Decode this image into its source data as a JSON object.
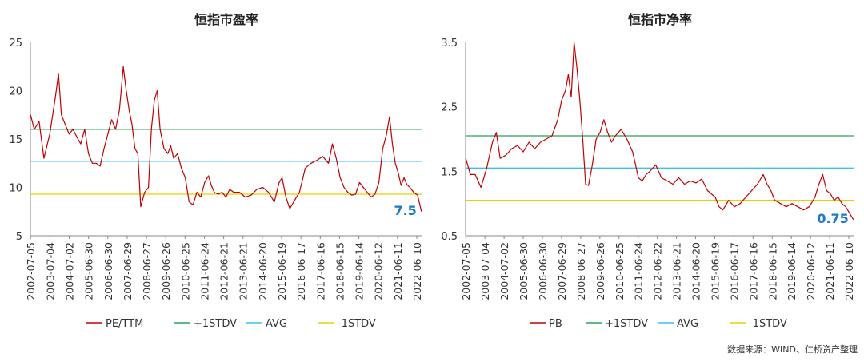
{
  "source_note": "数据来源：WIND、仁桥资产整理",
  "chart_data": [
    {
      "type": "line",
      "title": "恒指市盈率",
      "ylim": [
        5,
        25
      ],
      "yticks": [
        5,
        10,
        15,
        20,
        25
      ],
      "x_range": [
        2002.5,
        2022.75
      ],
      "xtick_labels": [
        "2002-07-05",
        "2003-07-04",
        "2004-07-02",
        "2005-06-30",
        "2006-06-30",
        "2007-06-29",
        "2008-06-27",
        "2009-06-26",
        "2010-06-25",
        "2011-06-24",
        "2012-06-21",
        "2013-06-21",
        "2014-06-20",
        "2015-06-19",
        "2016-06-17",
        "2017-06-16",
        "2018-06-15",
        "2019-06-14",
        "2020-06-12",
        "2021-06-11",
        "2022-06-10"
      ],
      "series": [
        {
          "name": "PE/TTM",
          "color": "#c00000",
          "x": [
            2002.51,
            2002.7,
            2002.95,
            2003.2,
            2003.5,
            2003.8,
            2003.95,
            2004.1,
            2004.3,
            2004.5,
            2004.7,
            2004.9,
            2005.1,
            2005.3,
            2005.5,
            2005.7,
            2005.9,
            2006.1,
            2006.3,
            2006.5,
            2006.7,
            2006.9,
            2007.1,
            2007.3,
            2007.45,
            2007.6,
            2007.75,
            2007.9,
            2008.05,
            2008.2,
            2008.4,
            2008.6,
            2008.75,
            2008.9,
            2009.05,
            2009.2,
            2009.4,
            2009.6,
            2009.75,
            2009.9,
            2010.1,
            2010.3,
            2010.5,
            2010.7,
            2010.9,
            2011.1,
            2011.3,
            2011.5,
            2011.7,
            2011.85,
            2012.0,
            2012.2,
            2012.4,
            2012.6,
            2012.8,
            2013.0,
            2013.3,
            2013.6,
            2013.9,
            2014.2,
            2014.5,
            2014.8,
            2015.1,
            2015.35,
            2015.5,
            2015.7,
            2015.9,
            2016.1,
            2016.4,
            2016.7,
            2017.0,
            2017.3,
            2017.6,
            2017.9,
            2018.1,
            2018.3,
            2018.5,
            2018.7,
            2018.9,
            2019.1,
            2019.3,
            2019.5,
            2019.7,
            2019.9,
            2020.1,
            2020.3,
            2020.5,
            2020.7,
            2020.9,
            2021.05,
            2021.2,
            2021.35,
            2021.5,
            2021.65,
            2021.8,
            2021.95,
            2022.1,
            2022.3,
            2022.5,
            2022.7
          ],
          "values": [
            17.5,
            16.0,
            16.8,
            13.0,
            15.5,
            19.5,
            21.8,
            17.5,
            16.5,
            15.5,
            16.0,
            15.2,
            14.5,
            16.0,
            13.5,
            12.5,
            12.5,
            12.2,
            14.0,
            15.5,
            17.0,
            16.0,
            18.0,
            22.5,
            20.0,
            18.0,
            16.5,
            14.0,
            13.5,
            8.0,
            9.5,
            10.0,
            16.0,
            19.0,
            20.0,
            16.0,
            14.0,
            13.5,
            14.3,
            13.0,
            13.5,
            12.0,
            11.0,
            8.5,
            8.2,
            9.5,
            9.0,
            10.5,
            11.2,
            10.2,
            9.5,
            9.3,
            9.5,
            9.0,
            9.8,
            9.5,
            9.5,
            9.0,
            9.2,
            9.8,
            10.0,
            9.5,
            8.5,
            10.5,
            11.0,
            9.0,
            7.8,
            8.5,
            9.5,
            12.0,
            12.5,
            12.8,
            13.2,
            12.5,
            14.5,
            13.0,
            11.0,
            10.0,
            9.5,
            9.2,
            9.3,
            10.5,
            10.0,
            9.5,
            9.0,
            9.3,
            10.5,
            14.0,
            15.5,
            17.3,
            14.5,
            12.5,
            11.5,
            10.2,
            11.0,
            10.3,
            10.0,
            9.5,
            9.2,
            7.5
          ]
        },
        {
          "name": "+1STDV",
          "color": "#2ca05a",
          "values": [
            16.0,
            16.0
          ]
        },
        {
          "name": "AVG",
          "color": "#3cc2f0",
          "values": [
            12.7,
            12.7
          ]
        },
        {
          "name": "-1STDV",
          "color": "#e8d000",
          "values": [
            9.3,
            9.3
          ]
        }
      ],
      "annotation": {
        "text": "7.5",
        "color": "#1f78c8"
      }
    },
    {
      "type": "line",
      "title": "恒指市净率",
      "ylim": [
        0.5,
        3.5
      ],
      "yticks": [
        "0.5",
        "1.5",
        "2.5",
        "3.5"
      ],
      "x_range": [
        2002.5,
        2022.75
      ],
      "xtick_labels": [
        "2002-07-05",
        "2003-07-04",
        "2004-07-02",
        "2005-06-30",
        "2006-06-30",
        "2007-06-29",
        "2008-06-27",
        "2009-06-26",
        "2010-06-25",
        "2011-06-24",
        "2012-06-22",
        "2013-06-21",
        "2014-06-20",
        "2015-06-19",
        "2016-06-17",
        "2017-06-16",
        "2018-06-15",
        "2019-06-14",
        "2020-06-12",
        "2021-06-11",
        "2022-06-10"
      ],
      "series": [
        {
          "name": "PB",
          "color": "#c00000",
          "x": [
            2002.51,
            2002.75,
            2003.0,
            2003.3,
            2003.6,
            2003.9,
            2004.1,
            2004.3,
            2004.6,
            2004.9,
            2005.2,
            2005.5,
            2005.8,
            2006.1,
            2006.4,
            2006.7,
            2007.0,
            2007.3,
            2007.5,
            2007.7,
            2007.85,
            2008.0,
            2008.15,
            2008.3,
            2008.45,
            2008.6,
            2008.75,
            2008.9,
            2009.1,
            2009.3,
            2009.5,
            2009.7,
            2009.9,
            2010.1,
            2010.3,
            2010.6,
            2010.9,
            2011.2,
            2011.5,
            2011.7,
            2011.9,
            2012.1,
            2012.4,
            2012.7,
            2013.0,
            2013.3,
            2013.6,
            2013.9,
            2014.2,
            2014.5,
            2014.8,
            2015.1,
            2015.3,
            2015.5,
            2015.7,
            2015.9,
            2016.2,
            2016.5,
            2016.8,
            2017.1,
            2017.4,
            2017.7,
            2018.0,
            2018.2,
            2018.4,
            2018.6,
            2018.9,
            2019.2,
            2019.5,
            2019.8,
            2020.1,
            2020.4,
            2020.7,
            2020.9,
            2021.1,
            2021.3,
            2021.5,
            2021.7,
            2021.9,
            2022.1,
            2022.3,
            2022.5,
            2022.7
          ],
          "values": [
            1.7,
            1.45,
            1.45,
            1.25,
            1.55,
            1.95,
            2.1,
            1.7,
            1.75,
            1.85,
            1.9,
            1.8,
            1.95,
            1.85,
            1.95,
            2.0,
            2.05,
            2.3,
            2.6,
            2.75,
            3.0,
            2.65,
            3.5,
            3.1,
            2.6,
            2.0,
            1.3,
            1.28,
            1.6,
            2.0,
            2.1,
            2.3,
            2.1,
            1.95,
            2.05,
            2.15,
            2.0,
            1.8,
            1.4,
            1.35,
            1.45,
            1.5,
            1.6,
            1.4,
            1.35,
            1.3,
            1.4,
            1.3,
            1.35,
            1.32,
            1.38,
            1.2,
            1.15,
            1.1,
            0.95,
            0.9,
            1.05,
            0.95,
            1.0,
            1.1,
            1.2,
            1.3,
            1.45,
            1.3,
            1.2,
            1.05,
            1.0,
            0.95,
            1.0,
            0.95,
            0.9,
            0.95,
            1.1,
            1.3,
            1.45,
            1.2,
            1.15,
            1.05,
            1.1,
            1.0,
            0.95,
            0.85,
            0.75
          ]
        },
        {
          "name": "+1STDV",
          "color": "#2ca05a",
          "values": [
            2.05,
            2.05
          ]
        },
        {
          "name": "AVG",
          "color": "#3cc2f0",
          "values": [
            1.55,
            1.55
          ]
        },
        {
          "name": "-1STDV",
          "color": "#e8d000",
          "values": [
            1.05,
            1.05
          ]
        }
      ],
      "annotation": {
        "text": "0.75",
        "color": "#1f78c8"
      }
    }
  ]
}
